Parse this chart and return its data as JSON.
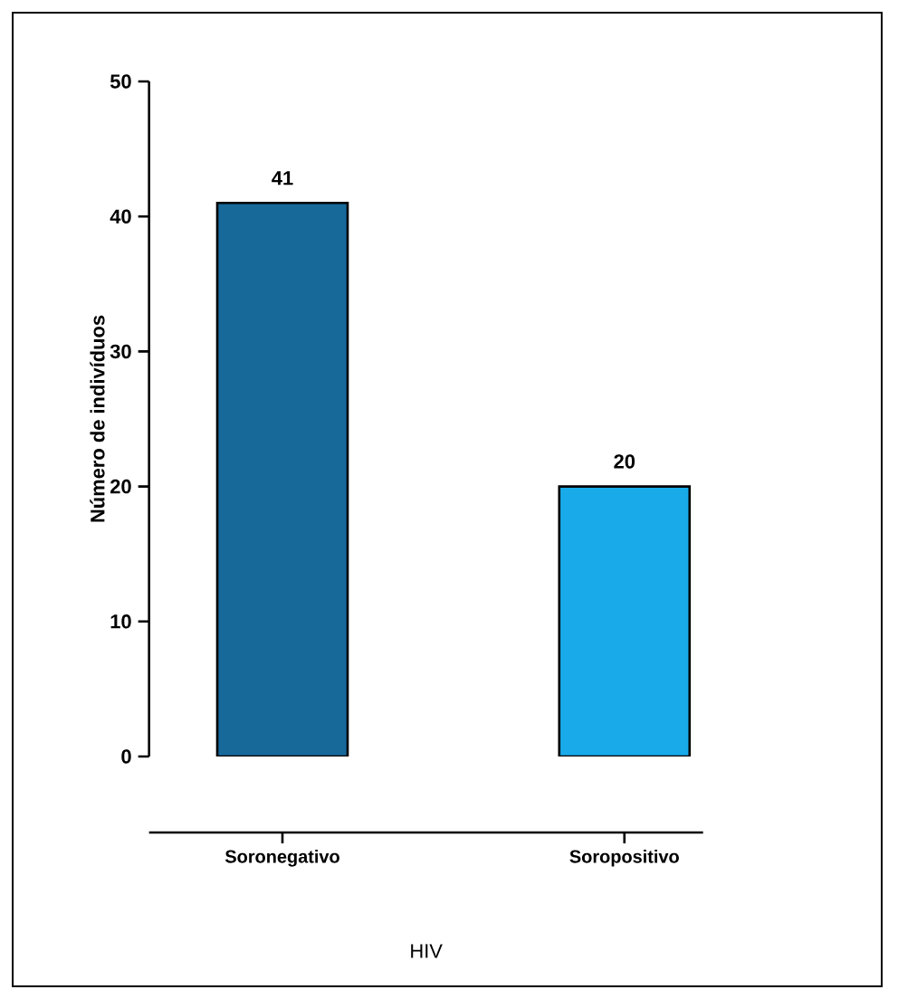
{
  "chart_data": {
    "type": "bar",
    "xlabel": "HIV",
    "ylabel": "Número de indivíduos",
    "categories": [
      "Soronegativo",
      "Soropositivo"
    ],
    "values": [
      41,
      20
    ],
    "colors": [
      "#17699a",
      "#19aaea"
    ],
    "ylim": [
      0,
      50
    ],
    "yticks": [
      0,
      10,
      20,
      30,
      40,
      50
    ],
    "data_labels": true
  }
}
